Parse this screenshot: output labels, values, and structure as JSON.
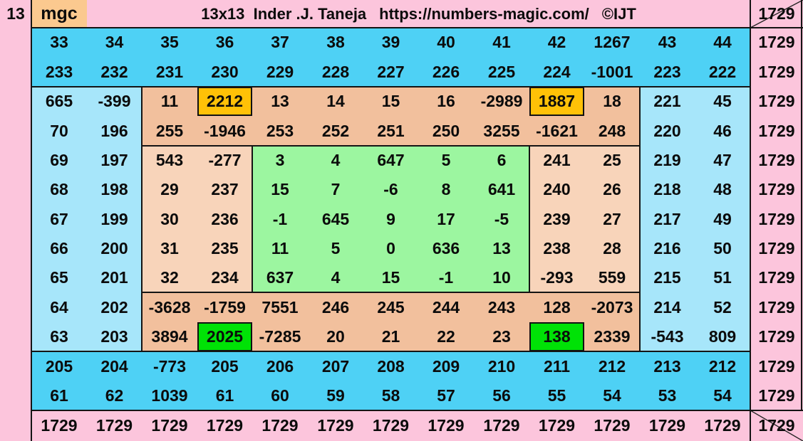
{
  "header": {
    "row_label": "13",
    "corner_label": "mgc",
    "title": "13x13  Inder .J. Taneja",
    "url": "https://numbers-magic.com/",
    "copyright": "©IJT"
  },
  "colors": {
    "pink": "#fcc5dc",
    "cyan_band": "#4ed1f5",
    "blue_band": "#a7e6fa",
    "peach_dark": "#f2c09d",
    "peach_light": "#f8d4ba",
    "green_center": "#9cf6a0",
    "gold": "#ffc107",
    "bright_green": "#00e206",
    "mgc_peach": "#fbc98f",
    "grid_line": "#141414",
    "diagonal_line": "#222222"
  },
  "chart_data": {
    "type": "table",
    "title": "13x13 bordered magic square",
    "size": "13x13",
    "magic_sum": 1729,
    "rows": [
      [
        33,
        34,
        35,
        36,
        37,
        38,
        39,
        40,
        41,
        42,
        1267,
        43,
        44
      ],
      [
        233,
        232,
        231,
        230,
        229,
        228,
        227,
        226,
        225,
        224,
        -1001,
        223,
        222
      ],
      [
        665,
        -399,
        11,
        2212,
        13,
        14,
        15,
        16,
        -2989,
        1887,
        18,
        221,
        45
      ],
      [
        70,
        196,
        255,
        -1946,
        253,
        252,
        251,
        250,
        3255,
        -1621,
        248,
        220,
        46
      ],
      [
        69,
        197,
        543,
        -277,
        3,
        4,
        647,
        5,
        6,
        241,
        25,
        219,
        47
      ],
      [
        68,
        198,
        29,
        237,
        15,
        7,
        -6,
        8,
        641,
        240,
        26,
        218,
        48
      ],
      [
        67,
        199,
        30,
        236,
        -1,
        645,
        9,
        17,
        -5,
        239,
        27,
        217,
        49
      ],
      [
        66,
        200,
        31,
        235,
        11,
        5,
        0,
        636,
        13,
        238,
        28,
        216,
        50
      ],
      [
        65,
        201,
        32,
        234,
        637,
        4,
        15,
        -1,
        10,
        -293,
        559,
        215,
        51
      ],
      [
        64,
        202,
        -3628,
        -1759,
        7551,
        246,
        245,
        244,
        243,
        128,
        -2073,
        214,
        52
      ],
      [
        63,
        203,
        3894,
        2025,
        -7285,
        20,
        21,
        22,
        23,
        138,
        2339,
        -543,
        809
      ],
      [
        205,
        204,
        -773,
        205,
        206,
        207,
        208,
        209,
        210,
        211,
        212,
        213,
        212
      ],
      [
        61,
        62,
        1039,
        61,
        60,
        59,
        58,
        57,
        56,
        55,
        54,
        53,
        54
      ]
    ],
    "zones": [
      "CCCCCCCCCCCCC",
      "CCCCCCCCCCCCC",
      "BBDDDDDDDDDBB",
      "BBDDDDDDDDDBB",
      "BBLLGGGGGLLBB",
      "BBLLGGGGGLLBB",
      "BBLLGGGGGLLBB",
      "BBLLGGGGGLLBB",
      "BBLLGGGGGLLBB",
      "BBDDDDDDDDDBB",
      "BBDDDDDDDDDBB",
      "CCCCCCCCCCCCC",
      "CCCCCCCCCCCCC"
    ],
    "highlights": [
      {
        "row": 3,
        "col": 4,
        "value": 2212,
        "color": "gold"
      },
      {
        "row": 3,
        "col": 10,
        "value": 1887,
        "color": "gold"
      },
      {
        "row": 11,
        "col": 4,
        "value": 2025,
        "color": "bright_green"
      },
      {
        "row": 11,
        "col": 10,
        "value": 138,
        "color": "bright_green"
      }
    ],
    "row_sums": [
      "1729",
      "1729",
      "1729",
      "1729",
      "1729",
      "1729",
      "1729",
      "1729",
      "1729",
      "1729",
      "1729",
      "1729",
      "1729"
    ],
    "col_sums": [
      "1729",
      "1729",
      "1729",
      "1729",
      "1729",
      "1729",
      "1729",
      "1729",
      "1729",
      "1729",
      "1729",
      "1729",
      "1729"
    ],
    "diagonal_sum_top": "1729",
    "diagonal_sum_bottom": "1729"
  }
}
